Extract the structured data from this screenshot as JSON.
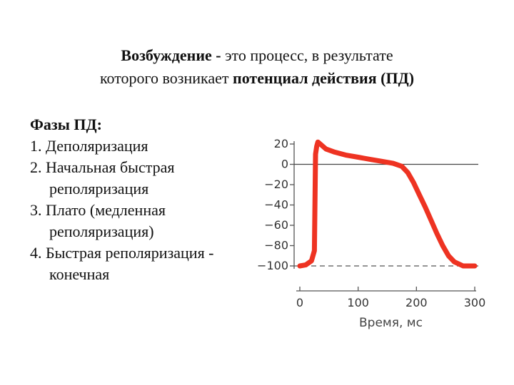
{
  "heading": {
    "line1_bold": "Возбуждение -",
    "line1_rest": " это процесс, в результате",
    "line2_start": "которого возникает ",
    "line2_bold": "потенциал действия (ПД)"
  },
  "phases": {
    "title": "Фазы ПД:",
    "items": [
      "1. Деполяризация",
      "2. Начальная быстрая реполяризация",
      "3. Плато (медленная реполяризация)",
      "4. Быстрая реполяризация - конечная"
    ]
  },
  "colors": {
    "trace": "#ee3322",
    "axis": "#555555",
    "text": "#111111"
  },
  "chart_data": {
    "type": "line",
    "title": "",
    "xlabel": "Время, мс",
    "ylabel": "",
    "xlim": [
      0,
      300
    ],
    "ylim": [
      -100,
      20
    ],
    "x_ticks": [
      0,
      100,
      200,
      300
    ],
    "y_ticks": [
      20,
      0,
      -20,
      -40,
      -60,
      -80,
      -100
    ],
    "x_tick_labels": [
      "0",
      "100",
      "200",
      "300"
    ],
    "y_tick_labels": [
      "20",
      "0",
      "−20",
      "−40",
      "−60",
      "−80",
      "−100"
    ],
    "reference_lines": [
      0,
      -100
    ],
    "series": [
      {
        "x": [
          0,
          10,
          20,
          25,
          27,
          29,
          31,
          35,
          45,
          60,
          80,
          100,
          120,
          140,
          160,
          175,
          185,
          195,
          205,
          215,
          225,
          235,
          245,
          255,
          265,
          280,
          300
        ],
        "y": [
          -100,
          -99,
          -95,
          -85,
          10,
          18,
          22,
          20,
          15,
          12,
          9,
          7,
          5,
          3,
          1,
          -2,
          -8,
          -18,
          -30,
          -42,
          -55,
          -68,
          -80,
          -90,
          -96,
          -100,
          -100
        ]
      }
    ]
  }
}
